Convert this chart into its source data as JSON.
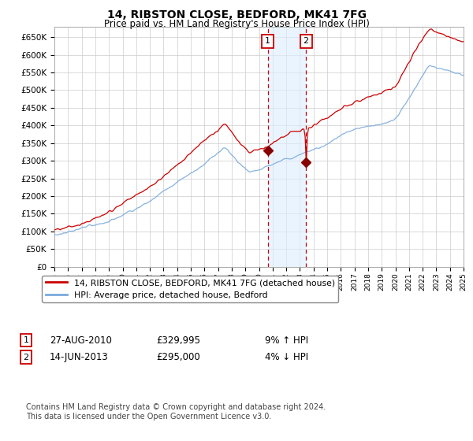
{
  "title": "14, RIBSTON CLOSE, BEDFORD, MK41 7FG",
  "subtitle": "Price paid vs. HM Land Registry's House Price Index (HPI)",
  "ylim": [
    0,
    680000
  ],
  "yticks": [
    0,
    50000,
    100000,
    150000,
    200000,
    250000,
    300000,
    350000,
    400000,
    450000,
    500000,
    550000,
    600000,
    650000
  ],
  "ytick_labels": [
    "£0",
    "£50K",
    "£100K",
    "£150K",
    "£200K",
    "£250K",
    "£300K",
    "£350K",
    "£400K",
    "£450K",
    "£500K",
    "£550K",
    "£600K",
    "£650K"
  ],
  "legend_label_red": "14, RIBSTON CLOSE, BEDFORD, MK41 7FG (detached house)",
  "legend_label_blue": "HPI: Average price, detached house, Bedford",
  "red_color": "#cc0000",
  "blue_color": "#7aaadd",
  "marker1_date": 2010.65,
  "marker1_value": 329995,
  "marker2_date": 2013.45,
  "marker2_value": 295000,
  "shade_color": "#ddeeff",
  "footnote": "Contains HM Land Registry data © Crown copyright and database right 2024.\nThis data is licensed under the Open Government Licence v3.0.",
  "background_color": "#ffffff",
  "grid_color": "#cccccc",
  "marker1_row": "27-AUG-2010",
  "marker1_price": "£329,995",
  "marker1_hpi": "9% ↑ HPI",
  "marker2_row": "14-JUN-2013",
  "marker2_price": "£295,000",
  "marker2_hpi": "4% ↓ HPI"
}
